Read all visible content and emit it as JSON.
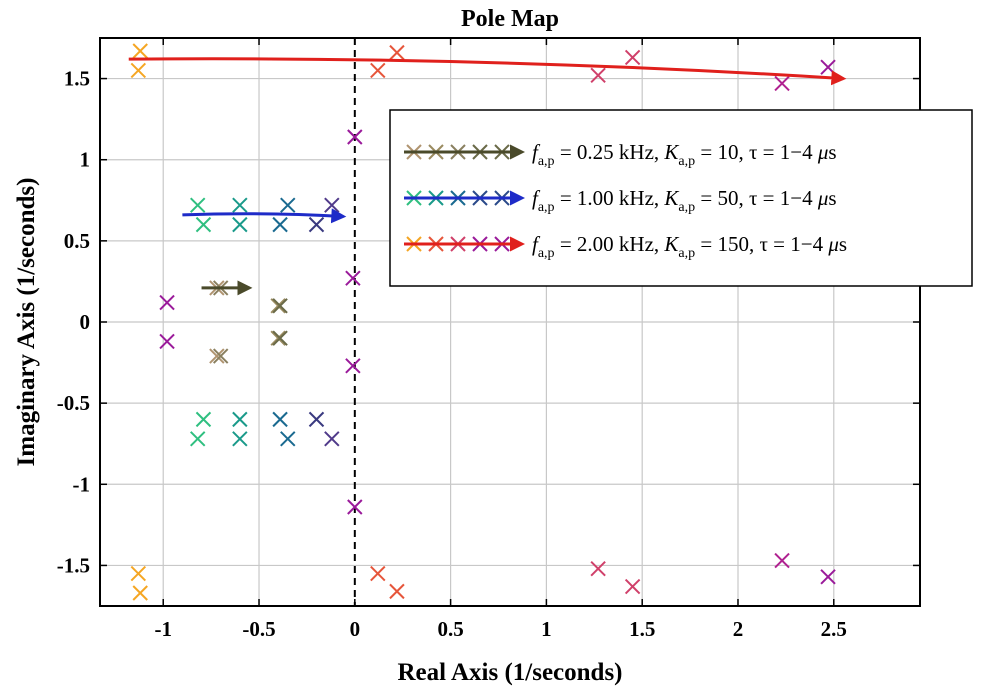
{
  "chart_data": {
    "type": "scatter",
    "title": "Pole Map",
    "xlabel": "Real Axis (1/seconds)",
    "ylabel": "Imaginary Axis (1/seconds)",
    "xlim": [
      -1.33,
      2.95
    ],
    "ylim": [
      -1.75,
      1.75
    ],
    "xticks": [
      -1,
      -0.5,
      0,
      0.5,
      1,
      1.5,
      2,
      2.5
    ],
    "xtick_labels": [
      "-1",
      "-0.5",
      "0",
      "0.5",
      "1",
      "1.5",
      "2",
      "2.5"
    ],
    "yticks": [
      -1.5,
      -1,
      -0.5,
      0,
      0.5,
      1,
      1.5
    ],
    "ytick_labels": [
      "-1.5",
      "-1",
      "-0.5",
      "0",
      "0.5",
      "1",
      "1.5"
    ],
    "grid": true,
    "legend_position": "top-right",
    "imag_axis_line": "dashed",
    "series": [
      {
        "name": "f_a,p = 0.25 kHz, K_a,p = 10, tau = 1-4 us",
        "legend": {
          "f_sym": "f",
          "f_sub": "a,p",
          "f_val": " = 0.25 kHz, ",
          "k_sym": "K",
          "k_sub": "a,p",
          "k_val": " = 10, ",
          "tau": "τ = 1−4 ",
          "mu": "μ",
          "unit": "s"
        },
        "arrow_color": "#4a4a2a",
        "colors": [
          "#b09470",
          "#9a8b60",
          "#8a8060",
          "#6a6a48"
        ],
        "points": [
          [
            -0.72,
            0.21
          ],
          [
            -0.72,
            -0.21
          ],
          [
            -0.7,
            0.21
          ],
          [
            -0.7,
            -0.21
          ],
          [
            -0.4,
            0.1
          ],
          [
            -0.4,
            -0.1
          ],
          [
            -0.39,
            0.1
          ],
          [
            -0.39,
            -0.1
          ]
        ],
        "point_colors": [
          "#b09470",
          "#b09470",
          "#8a8060",
          "#8a8060",
          "#9a8b60",
          "#9a8b60",
          "#6a6a48",
          "#6a6a48"
        ],
        "arrow": [
          [
            -0.8,
            0.21
          ],
          [
            -0.55,
            0.21
          ]
        ]
      },
      {
        "name": "f_a,p = 1.00 kHz, K_a,p = 50, tau = 1-4 us",
        "legend": {
          "f_sym": "f",
          "f_sub": "a,p",
          "f_val": " = 1.00 kHz, ",
          "k_sym": "K",
          "k_sub": "a,p",
          "k_val": " = 50, ",
          "tau": "τ = 1−4 ",
          "mu": "μ",
          "unit": "s"
        },
        "arrow_color": "#1e2bc8",
        "colors": [
          "#2fbf80",
          "#1a9a8a",
          "#1a6a90",
          "#2a4a8a"
        ],
        "points": [
          [
            -0.82,
            0.72
          ],
          [
            -0.82,
            -0.72
          ],
          [
            -0.79,
            0.6
          ],
          [
            -0.79,
            -0.6
          ],
          [
            -0.6,
            0.72
          ],
          [
            -0.6,
            -0.72
          ],
          [
            -0.6,
            0.6
          ],
          [
            -0.6,
            -0.6
          ],
          [
            -0.35,
            0.72
          ],
          [
            -0.35,
            -0.72
          ],
          [
            -0.39,
            0.6
          ],
          [
            -0.39,
            -0.6
          ],
          [
            -0.2,
            0.6
          ],
          [
            -0.2,
            -0.6
          ],
          [
            -0.12,
            0.72
          ],
          [
            -0.12,
            -0.72
          ]
        ],
        "point_colors": [
          "#2fbf80",
          "#2fbf80",
          "#2fbf80",
          "#2fbf80",
          "#1a9a8a",
          "#1a9a8a",
          "#1a9a8a",
          "#1a9a8a",
          "#1a6a90",
          "#1a6a90",
          "#1a6a90",
          "#1a6a90",
          "#3a3a80",
          "#3a3a80",
          "#503a8a",
          "#503a8a"
        ],
        "arrow": [
          [
            -0.9,
            0.66
          ],
          [
            -0.06,
            0.65
          ]
        ]
      },
      {
        "name": "f_a,p = 2.00 kHz, K_a,p = 150, tau = 1-4 us",
        "legend": {
          "f_sym": "f",
          "f_sub": "a,p",
          "f_val": " = 2.00 kHz, ",
          "k_sym": "K",
          "k_sub": "a,p",
          "k_val": " = 150, ",
          "tau": "τ = 1−4 ",
          "mu": "μ",
          "unit": "s"
        },
        "arrow_color": "#e0201c",
        "colors": [
          "#f5a623",
          "#e6553a",
          "#d0406a",
          "#9a1a9a"
        ],
        "points": [
          [
            -1.12,
            1.67
          ],
          [
            -1.12,
            -1.67
          ],
          [
            -1.13,
            1.55
          ],
          [
            -1.13,
            -1.55
          ],
          [
            0.22,
            1.66
          ],
          [
            0.22,
            -1.66
          ],
          [
            0.12,
            1.55
          ],
          [
            0.12,
            -1.55
          ],
          [
            1.27,
            1.52
          ],
          [
            1.27,
            -1.52
          ],
          [
            1.45,
            1.63
          ],
          [
            1.45,
            -1.63
          ],
          [
            2.23,
            1.47
          ],
          [
            2.23,
            -1.47
          ],
          [
            2.47,
            1.57
          ],
          [
            2.47,
            -1.57
          ],
          [
            -0.98,
            0.12
          ],
          [
            -0.98,
            -0.12
          ],
          [
            -0.01,
            0.27
          ],
          [
            -0.01,
            -0.27
          ],
          [
            0.0,
            1.14
          ],
          [
            0.0,
            -1.14
          ]
        ],
        "point_colors": [
          "#f5a623",
          "#f5a623",
          "#f5a623",
          "#f5a623",
          "#e6553a",
          "#e6553a",
          "#e6553a",
          "#e6553a",
          "#d0406a",
          "#d0406a",
          "#d0406a",
          "#d0406a",
          "#b02090",
          "#b02090",
          "#9a1a9a",
          "#9a1a9a",
          "#9a1a9a",
          "#9a1a9a",
          "#9a1a9a",
          "#9a1a9a",
          "#9a1a9a",
          "#9a1a9a"
        ],
        "arrow": [
          [
            -1.18,
            1.62
          ],
          [
            2.55,
            1.5
          ]
        ]
      }
    ]
  }
}
